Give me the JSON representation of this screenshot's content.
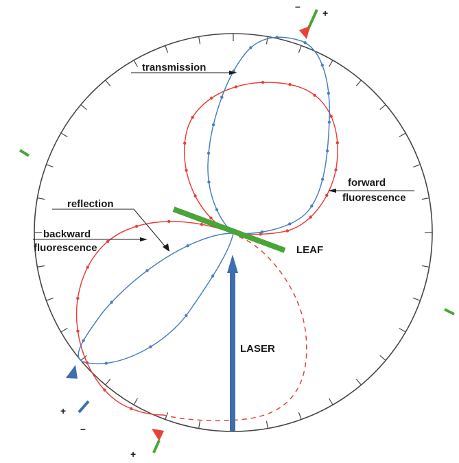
{
  "labels": {
    "transmission": "transmission",
    "forward_line1": "forward",
    "forward_line2": "fluorescence",
    "reflection": "reflection",
    "backward_line1": "backward",
    "backward_line2": "fluorescence",
    "leaf": "LEAF",
    "laser": "LASER"
  },
  "signs": {
    "top_minus": "–",
    "top_plus": "+",
    "left_plus": "+",
    "left_minus": "–",
    "bottom_plus": "+"
  },
  "colors": {
    "circle": "#444444",
    "transmission": "#4a7fc0",
    "fluorescence": "#e8413a",
    "leaf": "#49a537",
    "laser": "#3c6fad",
    "marker_red": "#e8413a",
    "marker_blue": "#3c6fad",
    "text": "#1a1a1a"
  },
  "icons": {
    "top_marker": "red-triangle-marker-icon",
    "left_marker": "blue-triangle-marker-icon",
    "bottom_marker": "red-triangle-marker-icon"
  }
}
